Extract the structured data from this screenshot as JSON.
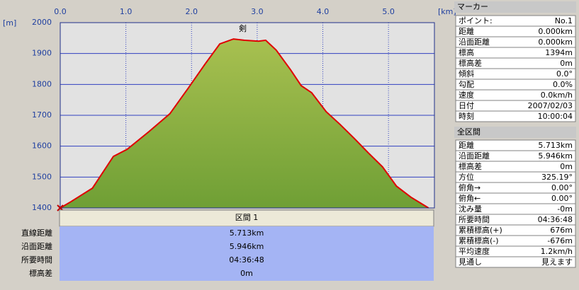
{
  "chart_data": {
    "type": "line",
    "xlabel": "[km]",
    "ylabel": "[m]",
    "x": [
      0,
      0.16,
      0.49,
      0.81,
      1.02,
      1.35,
      1.67,
      1.94,
      2.21,
      2.43,
      2.64,
      2.8,
      3.02,
      3.13,
      3.29,
      3.51,
      3.67,
      3.83,
      4.05,
      4.26,
      4.48,
      4.69,
      4.91,
      5.12,
      5.34,
      5.61
    ],
    "values": [
      1400,
      1420,
      1464,
      1567,
      1590,
      1647,
      1705,
      1785,
      1867,
      1931,
      1947,
      1943,
      1940,
      1943,
      1911,
      1847,
      1796,
      1773,
      1712,
      1671,
      1625,
      1579,
      1533,
      1471,
      1435,
      1400
    ],
    "color": "#e00000",
    "fill": "#6f9f35",
    "xlim": [
      0,
      5.7
    ],
    "xticks": [
      {
        "value": 0,
        "label": "0.0"
      },
      {
        "value": 1,
        "label": "1.0"
      },
      {
        "value": 2,
        "label": "2.0"
      },
      {
        "value": 3,
        "label": "3.0"
      },
      {
        "value": 4,
        "label": "4.0"
      },
      {
        "value": 5,
        "label": "5.0"
      }
    ],
    "ylim": [
      1400,
      2000
    ],
    "yticks": [
      1400,
      1500,
      1600,
      1700,
      1800,
      1900,
      2000
    ],
    "grid": true,
    "annotations": [
      {
        "text": "剣",
        "x": 2.78
      }
    ]
  },
  "segment": {
    "header": "区間 1",
    "rows": [
      [
        "直線距離",
        "5.713km"
      ],
      [
        "沿面距離",
        "5.946km"
      ],
      [
        "所要時間",
        "04:36:48"
      ],
      [
        "標高差",
        "0m"
      ]
    ]
  },
  "marker_panel": {
    "title": "マーカー",
    "rows": [
      [
        "ポイント:",
        "No.1"
      ],
      [
        "距離",
        "0.000km"
      ],
      [
        "沿面距離",
        "0.000km"
      ],
      [
        "標高",
        "1394m"
      ],
      [
        "標高差",
        "0m"
      ],
      [
        "傾斜",
        "0.0°"
      ],
      [
        "勾配",
        "0.0%"
      ],
      [
        "速度",
        "0.0km/h"
      ],
      [
        "日付",
        "2007/02/03"
      ],
      [
        "時刻",
        "10:00:04"
      ]
    ]
  },
  "total_panel": {
    "title": "全区間",
    "rows": [
      [
        "距離",
        "5.713km"
      ],
      [
        "沿面距離",
        "5.946km"
      ],
      [
        "標高差",
        "0m"
      ],
      [
        "方位",
        "325.19°"
      ],
      [
        "俯角→",
        "0.00°"
      ],
      [
        "俯角←",
        "0.00°"
      ],
      [
        "沈み量",
        "-0m"
      ],
      [
        "所要時間",
        "04:36:48"
      ],
      [
        "累積標高(+)",
        "676m"
      ],
      [
        "累積標高(-)",
        "-676m"
      ],
      [
        "平均速度",
        "1.2km/h"
      ],
      [
        "見通し",
        "見えます"
      ]
    ]
  }
}
